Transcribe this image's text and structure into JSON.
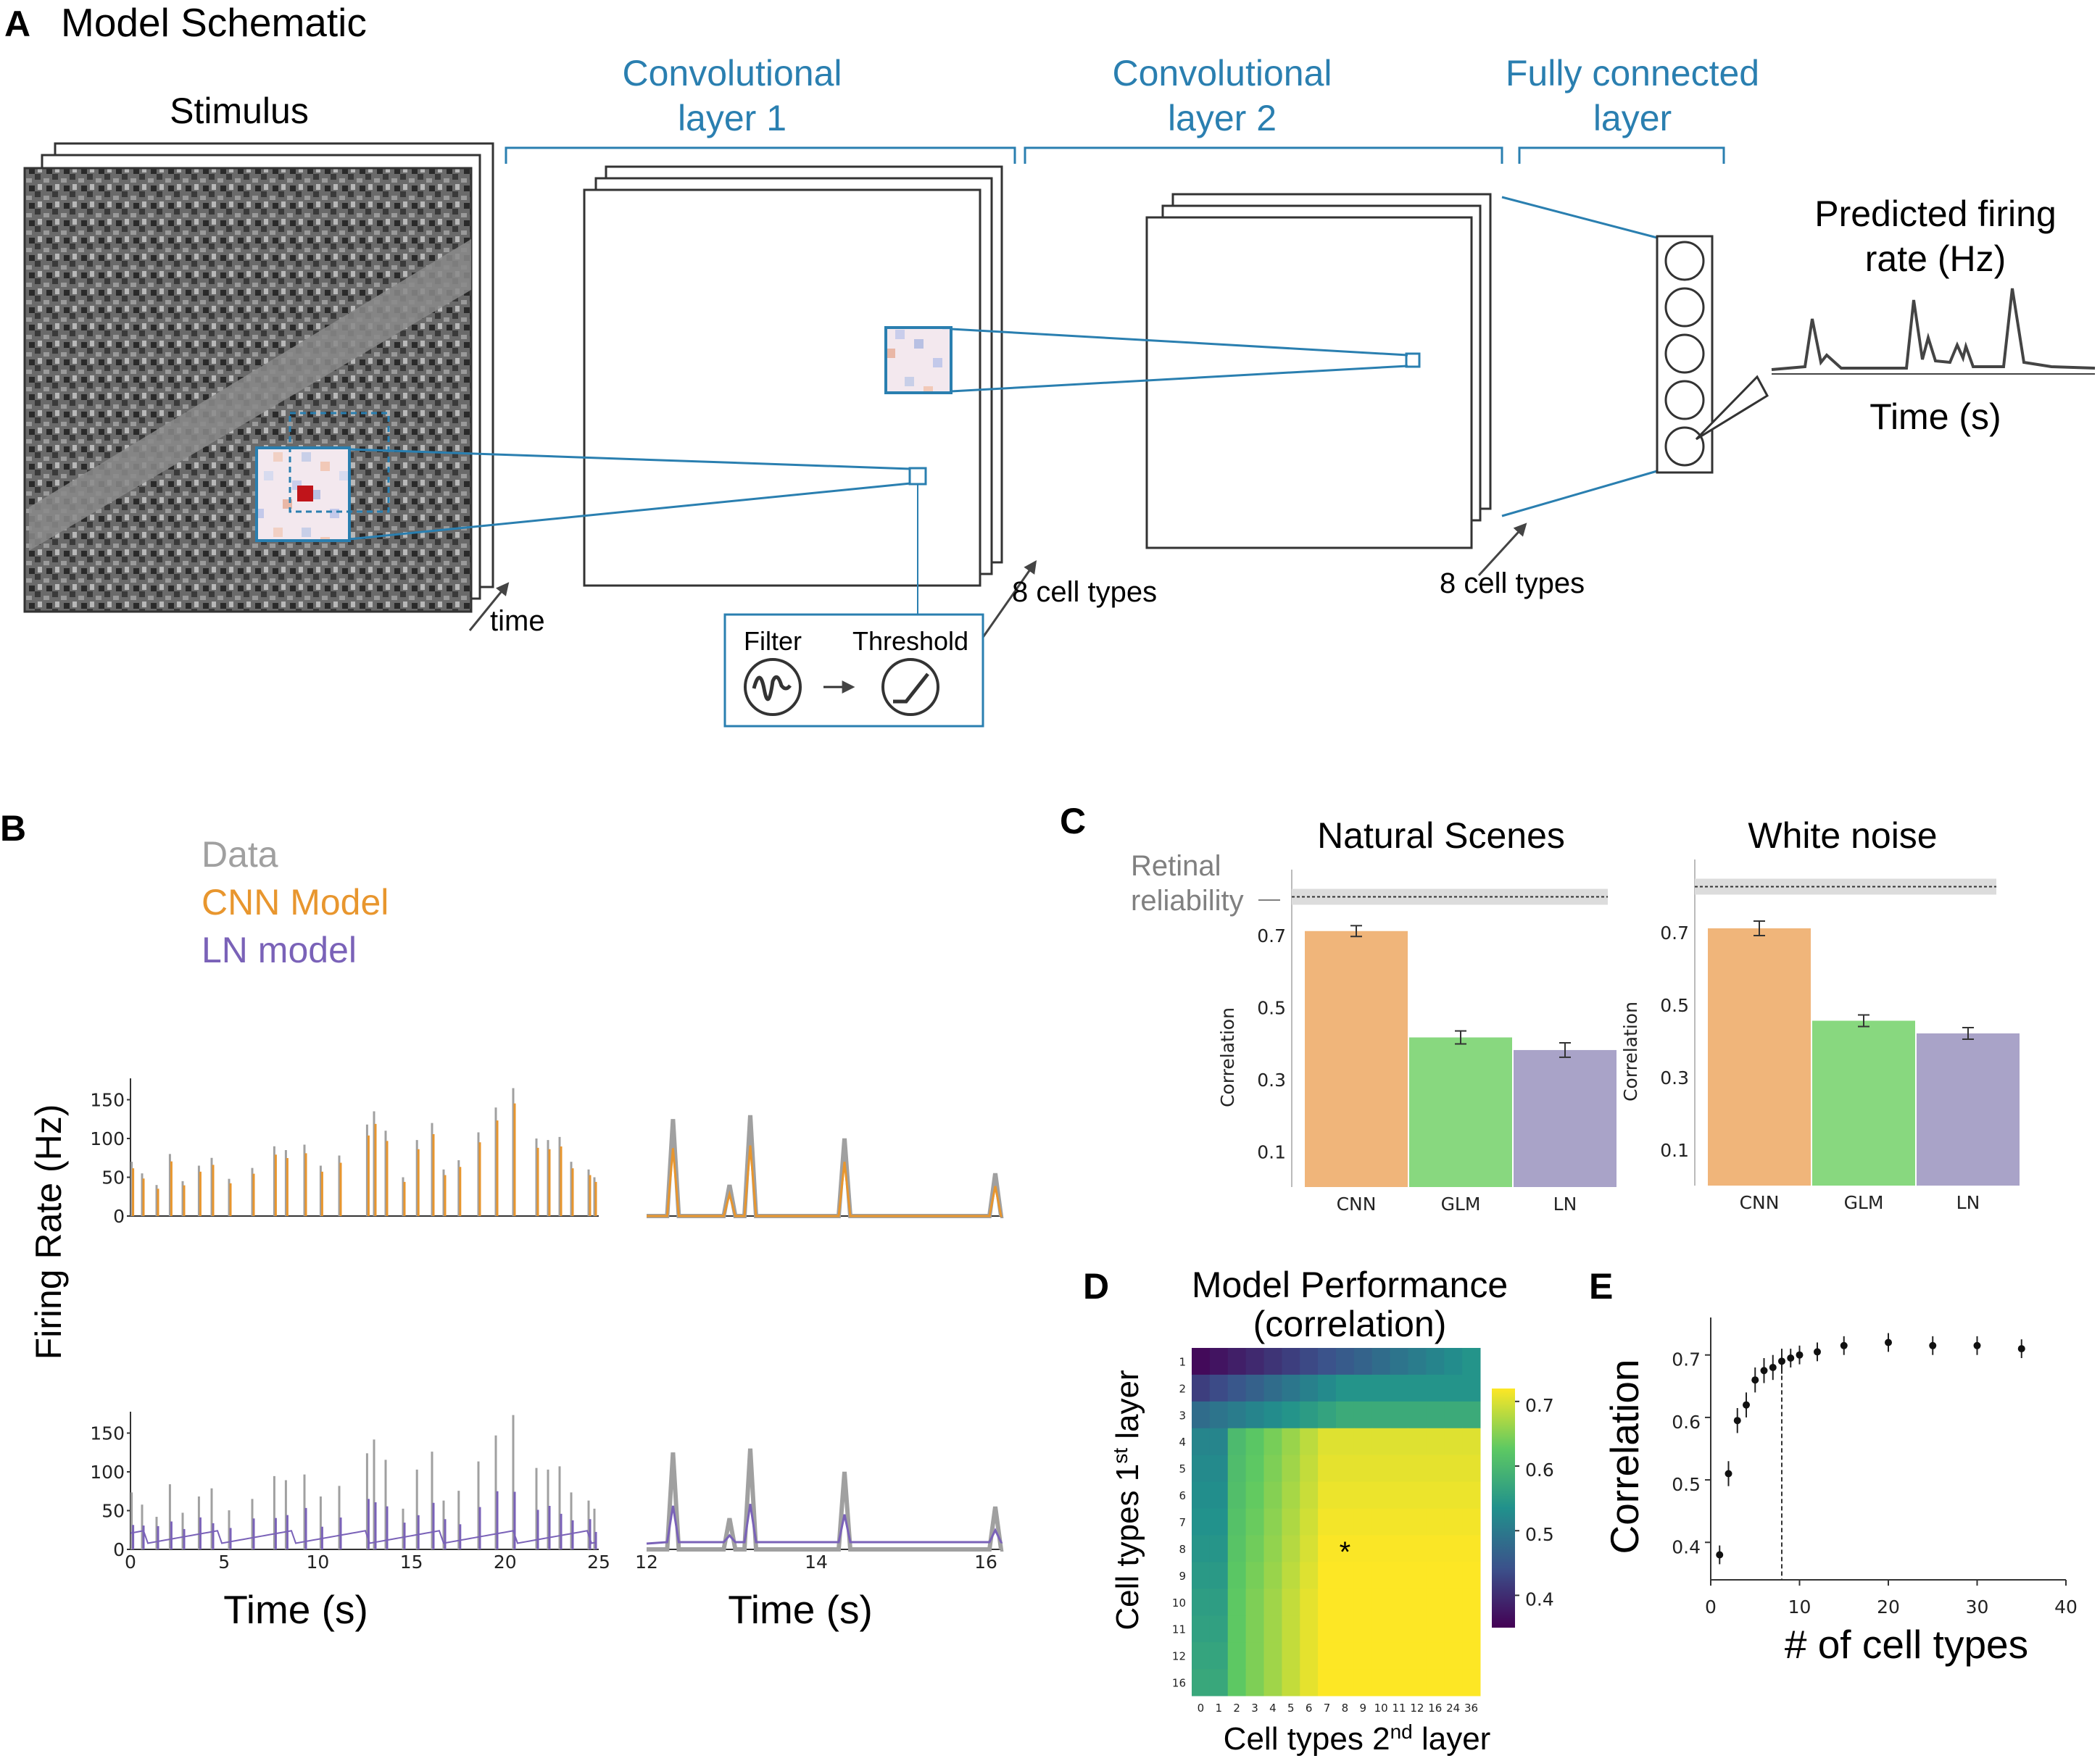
{
  "panelA": {
    "label": "A",
    "title": "Model Schematic",
    "stimulus": "Stimulus",
    "time": "time",
    "conv1": [
      "Convolutional",
      "layer 1"
    ],
    "conv2": [
      "Convolutional",
      "layer 2"
    ],
    "fc": [
      "Fully connected",
      "layer"
    ],
    "celltypes1": "8 cell types",
    "celltypes2": "8 cell types",
    "filter": "Filter",
    "threshold": "Threshold",
    "pred": [
      "Predicted firing",
      "rate (Hz)"
    ],
    "timeS": "Time (s)"
  },
  "panelB": {
    "label": "B",
    "legend": [
      {
        "name": "Data",
        "color": "#a0a0a0"
      },
      {
        "name": "CNN Model",
        "color": "#e8962e"
      },
      {
        "name": "LN model",
        "color": "#7a62b8"
      }
    ],
    "ylabel": "Firing Rate (Hz)",
    "xlabel": "Time (s)",
    "yticks": [
      "0",
      "50",
      "100",
      "150"
    ],
    "xticksLong": [
      "0",
      "5",
      "10",
      "15",
      "20",
      "25"
    ],
    "xticksShort": [
      "12",
      "14",
      "16"
    ]
  },
  "chart_data": [
    {
      "id": "C-natural",
      "type": "bar",
      "title": "Natural Scenes",
      "ylabel": "Correlation",
      "categories": [
        "CNN",
        "GLM",
        "LN"
      ],
      "values": [
        0.71,
        0.415,
        0.38
      ],
      "errors": [
        0.015,
        0.018,
        0.02
      ],
      "colors": [
        "#f0b57a",
        "#88d87f",
        "#a9a3c8"
      ],
      "yticks": [
        "0.1",
        "0.3",
        "0.5",
        "0.7"
      ],
      "ylim": [
        0.0,
        0.8
      ],
      "reliability": 0.805,
      "reliability_label": [
        "Retinal",
        "reliability"
      ]
    },
    {
      "id": "C-whitenoise",
      "type": "bar",
      "title": "White noise",
      "ylabel": "Correlation",
      "categories": [
        "CNN",
        "GLM",
        "LN"
      ],
      "values": [
        0.71,
        0.455,
        0.42
      ],
      "errors": [
        0.02,
        0.016,
        0.016
      ],
      "colors": [
        "#f0b57a",
        "#88d87f",
        "#a9a3c8"
      ],
      "yticks": [
        "0.1",
        "0.3",
        "0.5",
        "0.7"
      ],
      "ylim": [
        0.0,
        0.82
      ],
      "reliability": 0.825
    },
    {
      "id": "D",
      "type": "heatmap",
      "title": [
        "Model Performance",
        "(correlation)"
      ],
      "xlabel": "Cell types 2nd layer",
      "ylabel": "Cell types 1st layer",
      "x": [
        "0",
        "1",
        "2",
        "3",
        "4",
        "5",
        "6",
        "7",
        "8",
        "9",
        "10",
        "11",
        "12",
        "16",
        "24",
        "36"
      ],
      "y": [
        "1",
        "2",
        "3",
        "4",
        "5",
        "6",
        "7",
        "8",
        "9",
        "10",
        "11",
        "12",
        "16"
      ],
      "colorbar_ticks": [
        "0.4",
        "0.5",
        "0.6",
        "0.7"
      ],
      "clim": [
        0.35,
        0.72
      ],
      "marker": {
        "x": "8",
        "y": "8",
        "symbol": "*"
      }
    },
    {
      "id": "E",
      "type": "scatter",
      "xlabel": "# of cell types",
      "ylabel": "Correlation",
      "x": [
        1,
        2,
        3,
        4,
        5,
        6,
        7,
        8,
        9,
        10,
        12,
        15,
        20,
        25,
        30,
        35
      ],
      "y": [
        0.38,
        0.51,
        0.595,
        0.62,
        0.66,
        0.675,
        0.68,
        0.69,
        0.695,
        0.7,
        0.705,
        0.715,
        0.72,
        0.715,
        0.715,
        0.71
      ],
      "errors": [
        0.015,
        0.02,
        0.02,
        0.02,
        0.02,
        0.02,
        0.02,
        0.02,
        0.015,
        0.015,
        0.015,
        0.015,
        0.015,
        0.015,
        0.015,
        0.015
      ],
      "xticks": [
        "0",
        "10",
        "20",
        "30",
        "40"
      ],
      "yticks": [
        "0.4",
        "0.5",
        "0.6",
        "0.7"
      ],
      "xlim": [
        0,
        40
      ],
      "ylim": [
        0.34,
        0.76
      ],
      "vline": 8
    }
  ],
  "panelLabels": {
    "C": "C",
    "D": "D",
    "E": "E"
  }
}
